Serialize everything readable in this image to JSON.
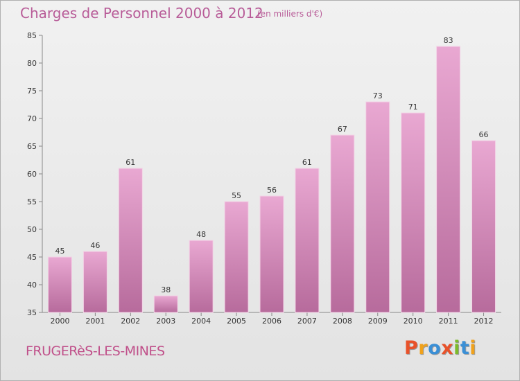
{
  "header": {
    "title": "Charges de Personnel 2000 à 2012",
    "subtitle": "(en milliers d'€)"
  },
  "footer": {
    "location": "FRUGERèS-LES-MINES",
    "brand": "Proxiti",
    "brand_colors": [
      "#e8522a",
      "#f0a21c",
      "#3a8fd6",
      "#e8522a",
      "#7dbb2b",
      "#3a8fd6",
      "#f0a21c"
    ]
  },
  "colors": {
    "bar_top": "#e9a8d2",
    "bar_bottom": "#b76b9c",
    "text": "#b85c98",
    "axis_text": "#333333"
  },
  "chart_data": {
    "type": "bar",
    "title": "Charges de Personnel 2000 à 2012",
    "subtitle": "(en milliers d'€)",
    "categories": [
      "2000",
      "2001",
      "2002",
      "2003",
      "2004",
      "2005",
      "2006",
      "2007",
      "2008",
      "2009",
      "2010",
      "2011",
      "2012"
    ],
    "values": [
      45,
      46,
      61,
      38,
      48,
      55,
      56,
      61,
      67,
      73,
      71,
      83,
      66
    ],
    "ylim": [
      35,
      85
    ],
    "yticks": [
      35,
      40,
      45,
      50,
      55,
      60,
      65,
      70,
      75,
      80,
      85
    ],
    "grid": false,
    "data_labels": true
  }
}
